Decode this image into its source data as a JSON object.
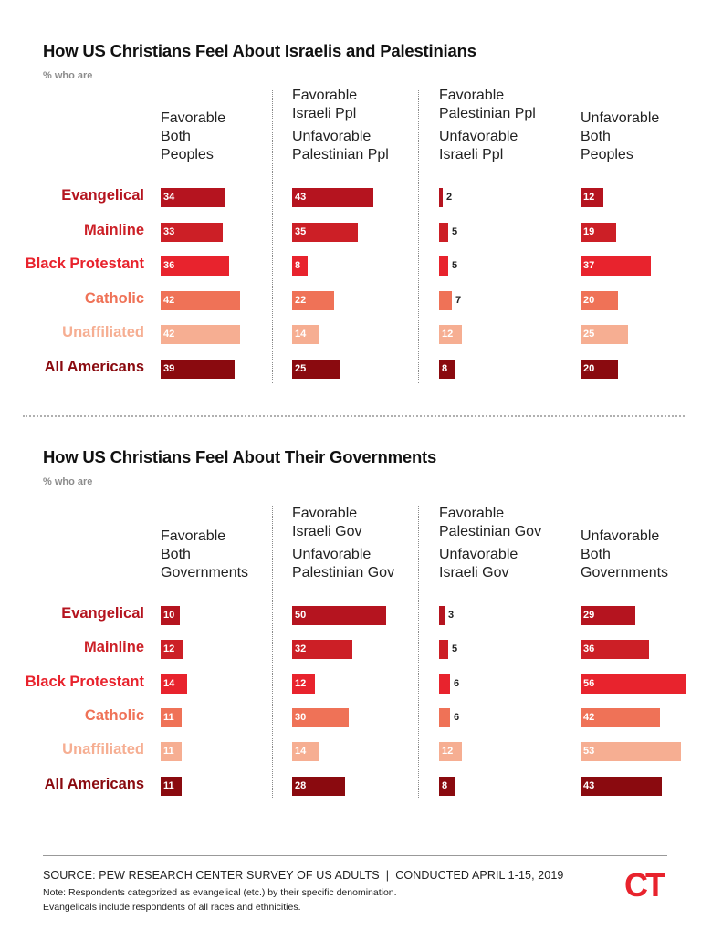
{
  "colors": {
    "Evangelical": "#b5141f",
    "Mainline": "#cc1f26",
    "Black Protestant": "#e8232d",
    "Catholic": "#ef7257",
    "Unaffiliated": "#f6ae92",
    "All Americans": "#8a0a0f"
  },
  "chart_data": [
    {
      "type": "bar",
      "title": "How US Christians Feel About Israelis and Palestinians",
      "subtitle": "% who are",
      "categories": [
        "Evangelical",
        "Mainline",
        "Black Protestant",
        "Catholic",
        "Unaffiliated",
        "All Americans"
      ],
      "panels": [
        {
          "label_lines": [
            "Favorable",
            "Both",
            "Peoples"
          ],
          "values": [
            34,
            33,
            36,
            42,
            42,
            39
          ]
        },
        {
          "label_lines": [
            "Favorable",
            "Israeli Ppl",
            "",
            "Unfavorable",
            "Palestinian Ppl"
          ],
          "values": [
            43,
            35,
            8,
            22,
            14,
            25
          ]
        },
        {
          "label_lines": [
            "Favorable",
            "Palestinian Ppl",
            "",
            "Unfavorable",
            "Israeli Ppl"
          ],
          "values": [
            2,
            5,
            5,
            7,
            12,
            8
          ]
        },
        {
          "label_lines": [
            "Unfavorable",
            "Both",
            "Peoples"
          ],
          "values": [
            12,
            19,
            37,
            20,
            25,
            20
          ]
        }
      ]
    },
    {
      "type": "bar",
      "title": "How US Christians Feel About Their Governments",
      "subtitle": "% who are",
      "categories": [
        "Evangelical",
        "Mainline",
        "Black Protestant",
        "Catholic",
        "Unaffiliated",
        "All Americans"
      ],
      "panels": [
        {
          "label_lines": [
            "Favorable",
            "Both",
            "Governments"
          ],
          "values": [
            10,
            12,
            14,
            11,
            11,
            11
          ]
        },
        {
          "label_lines": [
            "Favorable",
            "Israeli Gov",
            "",
            "Unfavorable",
            "Palestinian Gov"
          ],
          "values": [
            50,
            32,
            12,
            30,
            14,
            28
          ]
        },
        {
          "label_lines": [
            "Favorable",
            "Palestinian Gov",
            "",
            "Unfavorable",
            "Israeli Gov"
          ],
          "values": [
            3,
            5,
            6,
            6,
            12,
            8
          ]
        },
        {
          "label_lines": [
            "Unfavorable",
            "Both",
            "Governments"
          ],
          "values": [
            29,
            36,
            56,
            42,
            53,
            43
          ]
        }
      ]
    }
  ],
  "footer": {
    "source": "SOURCE: PEW RESEARCH CENTER SURVEY OF US ADULTS  |  CONDUCTED APRIL 1-15, 2019",
    "note1": "Note: Respondents categorized as evangelical (etc.) by their specific denomination.",
    "note2": "Evangelicals include respondents of all races and ethnicities.",
    "logo": "CT"
  }
}
